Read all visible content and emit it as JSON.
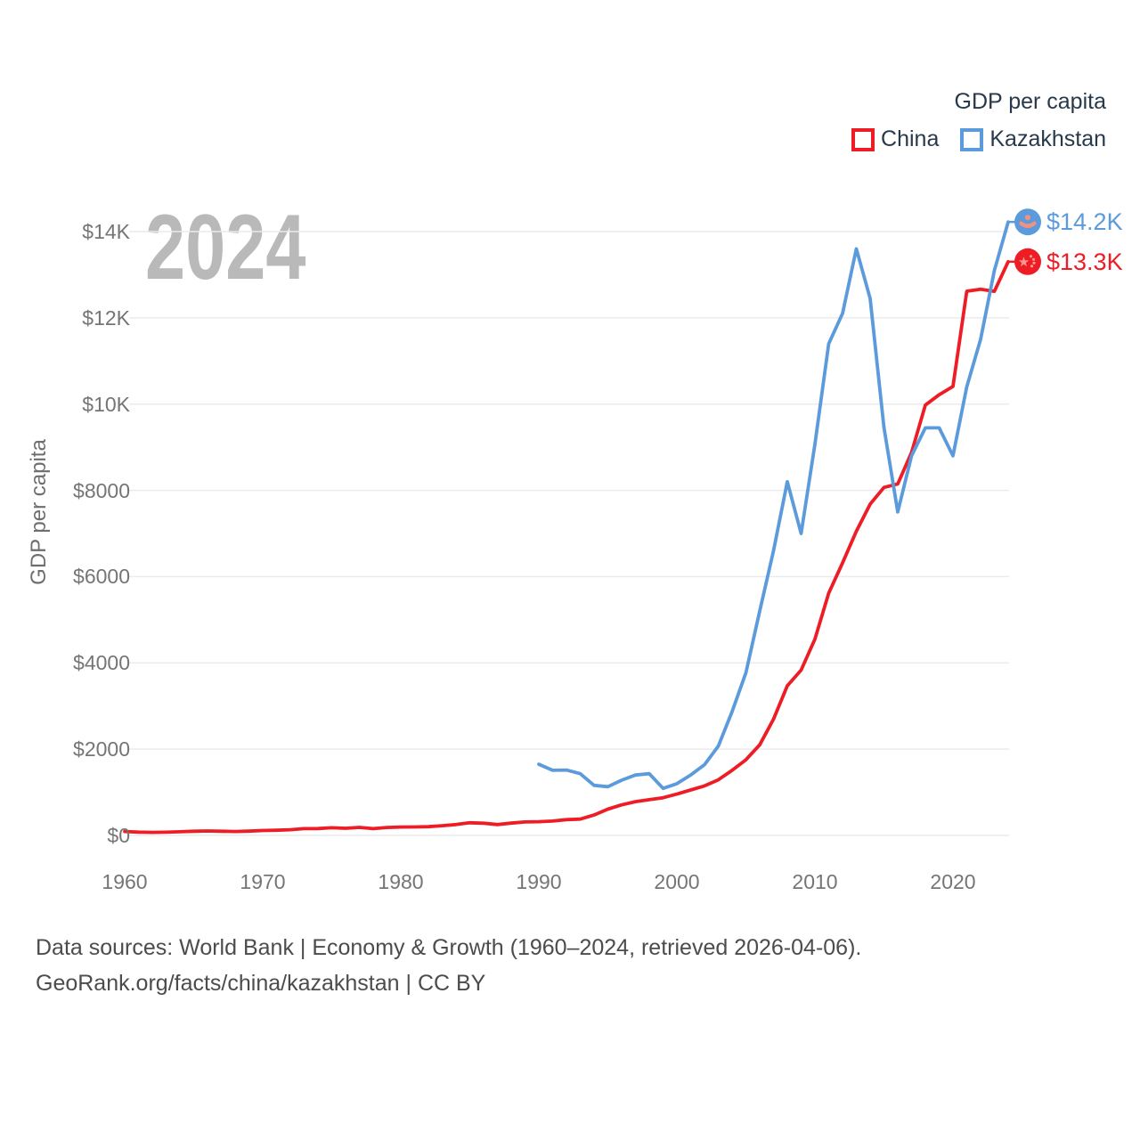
{
  "watermark": {
    "year": "2024"
  },
  "legend": {
    "title": "GDP per capita",
    "items": [
      {
        "label": "China",
        "color": "#ee1c25"
      },
      {
        "label": "Kazakhstan",
        "color": "#5b9bdc"
      }
    ]
  },
  "y_axis": {
    "title": "GDP per capita",
    "ticks": [
      {
        "value": 0,
        "label": "$0"
      },
      {
        "value": 2000,
        "label": "$2000"
      },
      {
        "value": 4000,
        "label": "$4000"
      },
      {
        "value": 6000,
        "label": "$6000"
      },
      {
        "value": 8000,
        "label": "$8000"
      },
      {
        "value": 10000,
        "label": "$10K"
      },
      {
        "value": 12000,
        "label": "$12K"
      },
      {
        "value": 14000,
        "label": "$14K"
      }
    ]
  },
  "x_axis": {
    "ticks": [
      {
        "value": 1960,
        "label": "1960"
      },
      {
        "value": 1970,
        "label": "1970"
      },
      {
        "value": 1980,
        "label": "1980"
      },
      {
        "value": 1990,
        "label": "1990"
      },
      {
        "value": 2000,
        "label": "2000"
      },
      {
        "value": 2010,
        "label": "2010"
      },
      {
        "value": 2020,
        "label": "2020"
      }
    ]
  },
  "end_labels": {
    "kazakhstan": {
      "text": "$14.2K"
    },
    "china": {
      "text": "$13.3K"
    }
  },
  "footer": {
    "line1": "Data sources: World Bank | Economy & Growth (1960–2024, retrieved 2026-04-06).",
    "line2": "GeoRank.org/facts/china/kazakhstan | CC BY"
  },
  "chart_data": {
    "type": "line",
    "title": "GDP per capita",
    "xlabel": "",
    "ylabel": "GDP per capita",
    "x_range": [
      1960,
      2024
    ],
    "y_range": [
      0,
      14000
    ],
    "grid": "horizontal",
    "legend_position": "top-right",
    "series": [
      {
        "name": "China",
        "color": "#ee1c25",
        "start_year": 1960,
        "end_value_label": "$13.3K",
        "values": [
          90,
          76,
          71,
          74,
          85,
          98,
          104,
          97,
          91,
          100,
          113,
          119,
          132,
          157,
          160,
          178,
          165,
          185,
          156,
          184,
          195,
          197,
          203,
          225,
          251,
          294,
          282,
          252,
          284,
          311,
          318,
          333,
          366,
          377,
          473,
          610,
          709,
          782,
          829,
          873,
          959,
          1053,
          1149,
          1289,
          1509,
          1753,
          2099,
          2694,
          3468,
          3832,
          4550,
          5618,
          6317,
          7051,
          7679,
          8067,
          8148,
          8879,
          9977,
          10217,
          10409,
          12617,
          12663,
          12614,
          13303
        ]
      },
      {
        "name": "Kazakhstan",
        "color": "#5b9bdc",
        "start_year": 1990,
        "end_value_label": "$14.2K",
        "values": [
          1650,
          1510,
          1515,
          1430,
          1160,
          1130,
          1280,
          1400,
          1430,
          1090,
          1200,
          1400,
          1640,
          2070,
          2870,
          3770,
          5200,
          6600,
          8200,
          7000,
          9070,
          11400,
          12100,
          13600,
          12450,
          9460,
          7500,
          8800,
          9450,
          9450,
          8800,
          10400,
          11500,
          13100,
          14224
        ]
      }
    ]
  }
}
